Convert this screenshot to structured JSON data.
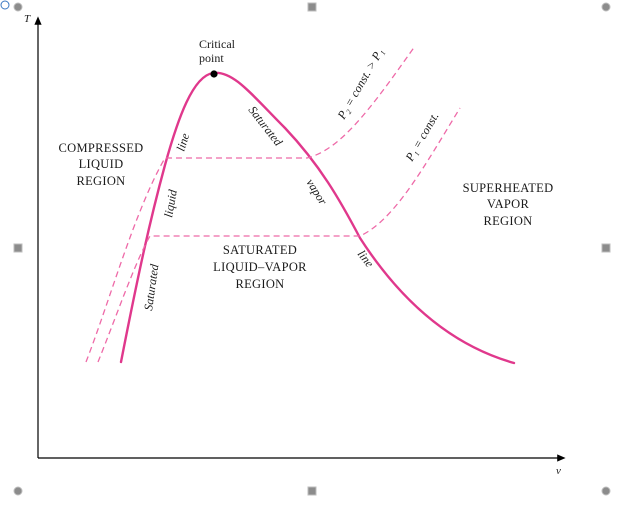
{
  "diagram": {
    "axis": {
      "y_label": "T",
      "x_label": "v"
    },
    "critical_point": {
      "line1": "Critical",
      "line2": "point"
    },
    "regions": {
      "compressed": {
        "line1": "COMPRESSED",
        "line2": "LIQUID",
        "line3": "REGION"
      },
      "superheated": {
        "line1": "SUPERHEATED",
        "line2": "VAPOR",
        "line3": "REGION"
      },
      "saturated_mix": {
        "line1": "SATURATED",
        "line2": "LIQUID–VAPOR",
        "line3": "REGION"
      }
    },
    "saturated_liquid_line": {
      "word1": "Saturated",
      "word2": "liquid",
      "word3": "line"
    },
    "saturated_vapor_line": {
      "word1": "Saturated",
      "word2": "vapor",
      "word3": "line"
    },
    "isobars": {
      "p2": "P₂ = const. > P₁",
      "p1": "P₁ = const."
    },
    "colors": {
      "dome": "#e0388c",
      "isobar": "#ee6aa8",
      "axis": "#000000"
    }
  }
}
